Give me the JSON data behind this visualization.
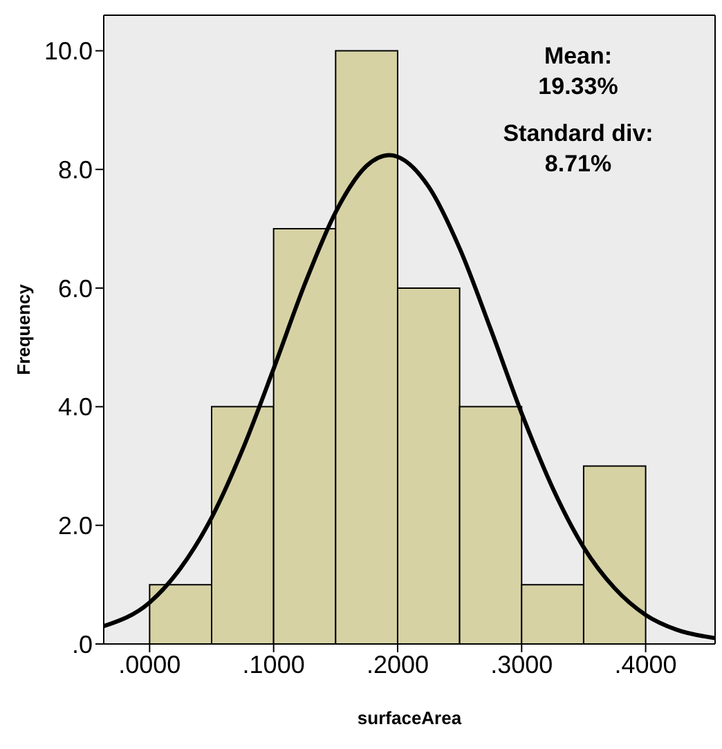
{
  "chart_data": {
    "type": "histogram",
    "xlabel": "surfaceArea",
    "ylabel": "Frequency",
    "bins": [
      0,
      0.05,
      0.1,
      0.15,
      0.2,
      0.25,
      0.3,
      0.35,
      0.4
    ],
    "values": [
      1,
      4,
      7,
      10,
      6,
      4,
      1,
      3
    ],
    "color": "#d6d2a4",
    "series": [
      {
        "type": "line",
        "color": "#000000",
        "x": [
          -0.037,
          0,
          0.025,
          0.05,
          0.075,
          0.1,
          0.125,
          0.15,
          0.175,
          0.1933,
          0.225,
          0.25,
          0.275,
          0.3,
          0.325,
          0.35,
          0.375,
          0.4,
          0.425,
          0.456
        ],
        "values": [
          0.3,
          0.7,
          1.28,
          2.13,
          3.28,
          4.64,
          6.06,
          7.28,
          8.06,
          8.24,
          7.71,
          6.67,
          5.31,
          3.89,
          2.63,
          1.63,
          0.94,
          0.49,
          0.24,
          0.1
        ]
      }
    ],
    "xlim": [
      -0.037,
      0.456
    ],
    "xticks": [
      {
        "value": 0,
        "label": ".0000"
      },
      {
        "value": 0.1,
        "label": ".1000"
      },
      {
        "value": 0.2,
        "label": ".2000"
      },
      {
        "value": 0.3,
        "label": ".3000"
      },
      {
        "value": 0.4,
        "label": ".4000"
      }
    ],
    "ylim": [
      0,
      10.6
    ],
    "yticks": [
      {
        "value": 0,
        "label": ".0"
      },
      {
        "value": 2,
        "label": "2.0"
      },
      {
        "value": 4,
        "label": "4.0"
      },
      {
        "value": 6,
        "label": "6.0"
      },
      {
        "value": 8,
        "label": "8.0"
      },
      {
        "value": 10,
        "label": "10.0"
      }
    ],
    "annotations": [
      "Mean:\n19.33%",
      "Standard div:\n8.71%"
    ],
    "grid": false,
    "marker": "none",
    "line_style": "solid"
  }
}
